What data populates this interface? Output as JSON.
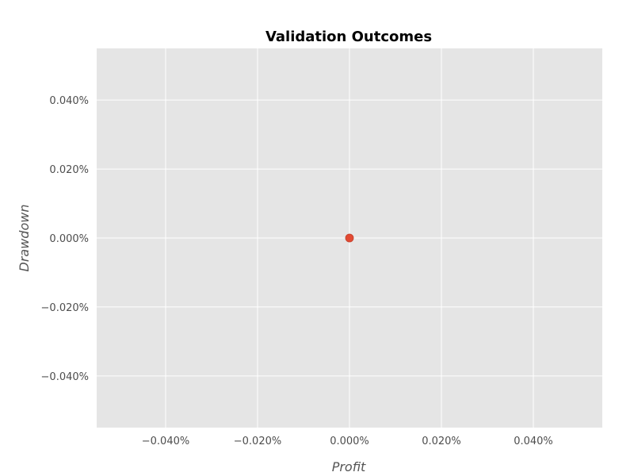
{
  "chart_data": {
    "type": "scatter",
    "title": "Validation Outcomes",
    "xlabel": "Profit",
    "ylabel": "Drawdown",
    "xlim": [
      -0.055,
      0.055
    ],
    "ylim": [
      -0.055,
      0.055
    ],
    "x_ticks": [
      -0.04,
      -0.02,
      0.0,
      0.02,
      0.04
    ],
    "y_ticks": [
      -0.04,
      -0.02,
      0.0,
      0.02,
      0.04
    ],
    "x_tick_labels": [
      "−0.040%",
      "−0.020%",
      "0.000%",
      "0.020%",
      "0.040%"
    ],
    "y_tick_labels": [
      "−0.040%",
      "−0.020%",
      "0.000%",
      "0.020%",
      "0.040%"
    ],
    "grid": true,
    "series": [
      {
        "x": [
          0.0
        ],
        "y": [
          0.0
        ],
        "color": "#e24a33"
      }
    ],
    "colors": {
      "plot_background": "#e5e5e5",
      "grid": "#ffffff"
    }
  }
}
